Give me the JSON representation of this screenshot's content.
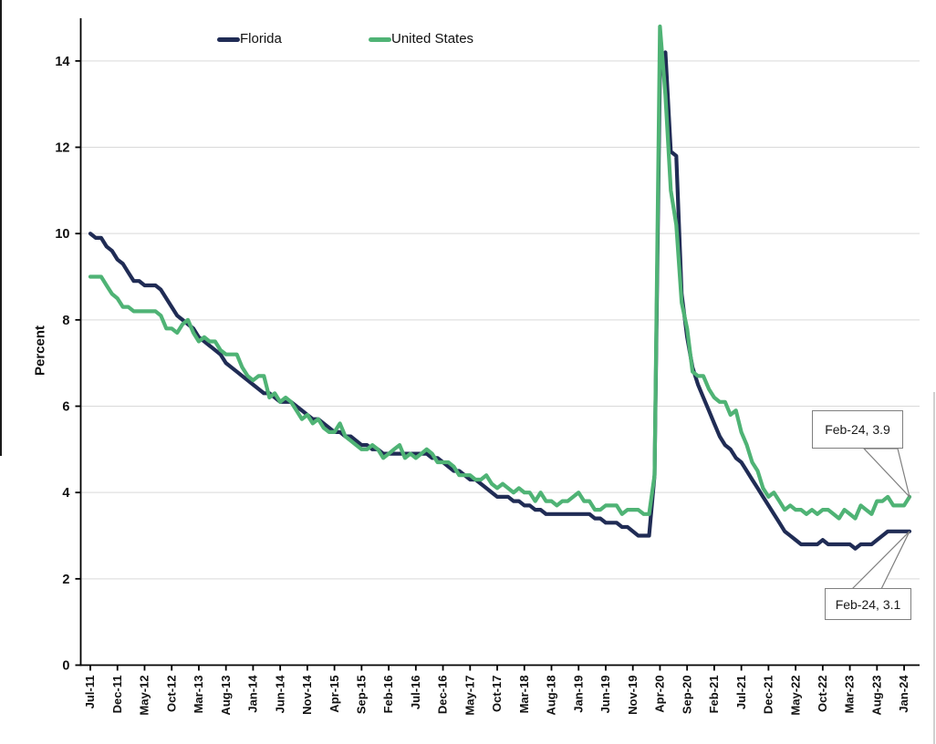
{
  "figure": {
    "y_axis_title": "Percent",
    "legend": [
      {
        "label": "Florida",
        "color": "#202C55"
      },
      {
        "label": "United States",
        "color": "#4FB375"
      }
    ],
    "annotations": [
      {
        "text": "Feb-24, 3.9",
        "series": "United States"
      },
      {
        "text": "Feb-24, 3.1",
        "series": "Florida"
      }
    ]
  },
  "chart_data": {
    "type": "line",
    "title": "",
    "xlabel": "",
    "ylabel": "Percent",
    "ylim": [
      0,
      15
    ],
    "y_ticks": [
      0,
      2,
      4,
      6,
      8,
      10,
      12,
      14
    ],
    "grid": "horizontal",
    "legend_position": "top",
    "x_start": "Jul-11",
    "x_end": "Feb-24",
    "x_tick_interval_months": 5,
    "x_tick_labels": [
      "Jul-11",
      "Dec-11",
      "May-12",
      "Oct-12",
      "Mar-13",
      "Aug-13",
      "Jan-14",
      "Jun-14",
      "Nov-14",
      "Apr-15",
      "Sep-15",
      "Feb-16",
      "Jul-16",
      "Dec-16",
      "May-17",
      "Oct-17",
      "Mar-18",
      "Aug-18",
      "Jan-19",
      "Jun-19",
      "Nov-19",
      "Apr-20",
      "Sep-20",
      "Feb-21",
      "Jul-21",
      "Dec-21",
      "May-22",
      "Oct-22",
      "Mar-23",
      "Aug-23",
      "Jan-24"
    ],
    "series": [
      {
        "name": "Florida",
        "color": "#202C55",
        "values": [
          10.0,
          9.9,
          9.9,
          9.7,
          9.6,
          9.4,
          9.3,
          9.1,
          8.9,
          8.9,
          8.8,
          8.8,
          8.8,
          8.7,
          8.5,
          8.3,
          8.1,
          8.0,
          7.9,
          7.8,
          7.6,
          7.5,
          7.4,
          7.3,
          7.2,
          7.0,
          6.9,
          6.8,
          6.7,
          6.6,
          6.5,
          6.4,
          6.3,
          6.3,
          6.2,
          6.1,
          6.1,
          6.1,
          6.0,
          5.9,
          5.8,
          5.7,
          5.7,
          5.6,
          5.5,
          5.4,
          5.4,
          5.3,
          5.3,
          5.2,
          5.1,
          5.1,
          5.0,
          5.0,
          4.9,
          4.9,
          4.9,
          4.9,
          4.9,
          4.9,
          4.9,
          4.9,
          4.9,
          4.8,
          4.8,
          4.7,
          4.6,
          4.5,
          4.5,
          4.4,
          4.3,
          4.3,
          4.2,
          4.1,
          4.0,
          3.9,
          3.9,
          3.9,
          3.8,
          3.8,
          3.7,
          3.7,
          3.6,
          3.6,
          3.5,
          3.5,
          3.5,
          3.5,
          3.5,
          3.5,
          3.5,
          3.5,
          3.5,
          3.4,
          3.4,
          3.3,
          3.3,
          3.3,
          3.2,
          3.2,
          3.1,
          3.0,
          3.0,
          3.0,
          4.4,
          13.8,
          14.2,
          11.9,
          11.8,
          8.6,
          7.6,
          6.9,
          6.5,
          6.2,
          5.9,
          5.6,
          5.3,
          5.1,
          5.0,
          4.8,
          4.7,
          4.5,
          4.3,
          4.1,
          3.9,
          3.7,
          3.5,
          3.3,
          3.1,
          3.0,
          2.9,
          2.8,
          2.8,
          2.8,
          2.8,
          2.9,
          2.8,
          2.8,
          2.8,
          2.8,
          2.8,
          2.7,
          2.8,
          2.8,
          2.8,
          2.9,
          3.0,
          3.1,
          3.1,
          3.1,
          3.1,
          3.1
        ]
      },
      {
        "name": "United States",
        "color": "#4FB375",
        "values": [
          9.0,
          9.0,
          9.0,
          8.8,
          8.6,
          8.5,
          8.3,
          8.3,
          8.2,
          8.2,
          8.2,
          8.2,
          8.2,
          8.1,
          7.8,
          7.8,
          7.7,
          7.9,
          8.0,
          7.7,
          7.5,
          7.6,
          7.5,
          7.5,
          7.3,
          7.2,
          7.2,
          7.2,
          6.9,
          6.7,
          6.6,
          6.7,
          6.7,
          6.2,
          6.3,
          6.1,
          6.2,
          6.1,
          5.9,
          5.7,
          5.8,
          5.6,
          5.7,
          5.5,
          5.4,
          5.4,
          5.6,
          5.3,
          5.2,
          5.1,
          5.0,
          5.0,
          5.1,
          5.0,
          4.8,
          4.9,
          5.0,
          5.1,
          4.8,
          4.9,
          4.8,
          4.9,
          5.0,
          4.9,
          4.7,
          4.7,
          4.7,
          4.6,
          4.4,
          4.4,
          4.4,
          4.3,
          4.3,
          4.4,
          4.2,
          4.1,
          4.2,
          4.1,
          4.0,
          4.1,
          4.0,
          4.0,
          3.8,
          4.0,
          3.8,
          3.8,
          3.7,
          3.8,
          3.8,
          3.9,
          4.0,
          3.8,
          3.8,
          3.6,
          3.6,
          3.7,
          3.7,
          3.7,
          3.5,
          3.6,
          3.6,
          3.6,
          3.5,
          3.5,
          4.4,
          14.8,
          13.2,
          11.0,
          10.2,
          8.4,
          7.8,
          6.8,
          6.7,
          6.7,
          6.4,
          6.2,
          6.1,
          6.1,
          5.8,
          5.9,
          5.4,
          5.1,
          4.7,
          4.5,
          4.1,
          3.9,
          4.0,
          3.8,
          3.6,
          3.7,
          3.6,
          3.6,
          3.5,
          3.6,
          3.5,
          3.6,
          3.6,
          3.5,
          3.4,
          3.6,
          3.5,
          3.4,
          3.7,
          3.6,
          3.5,
          3.8,
          3.8,
          3.9,
          3.7,
          3.7,
          3.7,
          3.9
        ]
      }
    ],
    "annotations": [
      {
        "label": "Feb-24, 3.9",
        "x": "Feb-24",
        "y": 3.9,
        "series": "United States"
      },
      {
        "label": "Feb-24, 3.1",
        "x": "Feb-24",
        "y": 3.1,
        "series": "Florida"
      }
    ]
  }
}
